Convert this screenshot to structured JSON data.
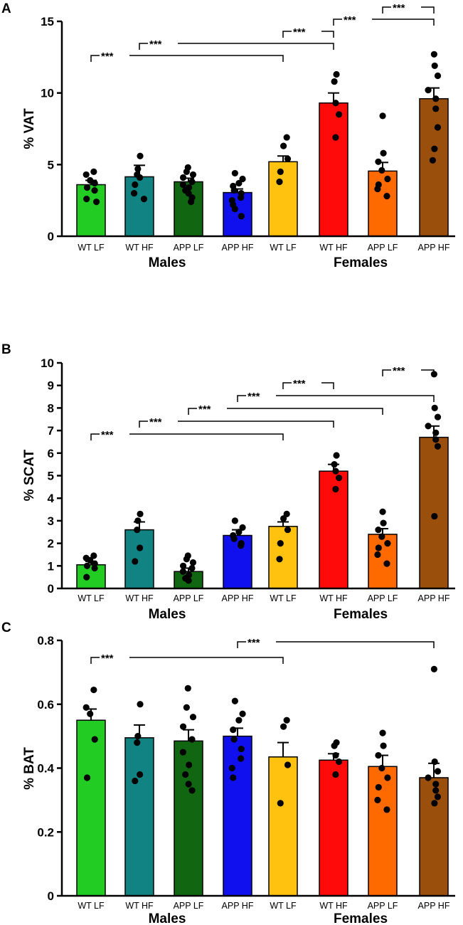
{
  "colors": {
    "WT LF M": "#22cc22",
    "WT HF M": "#128383",
    "APP LF M": "#116611",
    "APP HF M": "#1010ee",
    "WT LF F": "#ffc20e",
    "WT HF F": "#ff0a0a",
    "APP LF F": "#ff6a00",
    "APP HF F": "#9a4f0c"
  },
  "chart_data": [
    {
      "panel": "A",
      "type": "bar",
      "ylabel": "% VAT",
      "ylim": [
        0,
        15
      ],
      "yticks": [
        0,
        5,
        10,
        15
      ],
      "ytick_labels": [
        "0",
        "5",
        "10",
        "15"
      ],
      "categories": [
        "WT LF",
        "WT HF",
        "APP LF",
        "APP HF",
        "WT LF",
        "WT HF",
        "APP LF",
        "APP HF"
      ],
      "groups": [
        "Males",
        "Females"
      ],
      "values": [
        3.6,
        4.15,
        3.8,
        3.05,
        5.2,
        9.3,
        4.55,
        9.6
      ],
      "errors": [
        0.3,
        0.8,
        0.25,
        0.25,
        0.4,
        0.7,
        0.6,
        0.75
      ],
      "points": [
        [
          4.5,
          4.3,
          3.9,
          3.7,
          3.4,
          3.2,
          2.6,
          2.4
        ],
        [
          5.6,
          4.7,
          4.3,
          4.1,
          3.6,
          3.0,
          2.6
        ],
        [
          4.8,
          4.5,
          4.3,
          4.1,
          3.8,
          3.6,
          3.4,
          3.2,
          3.0,
          2.7,
          2.4
        ],
        [
          4.4,
          4.0,
          3.7,
          3.5,
          3.2,
          3.0,
          2.7,
          2.5,
          2.2,
          1.9,
          1.4
        ],
        [
          6.9,
          6.3,
          5.4,
          4.5,
          3.8
        ],
        [
          11.3,
          10.8,
          9.3,
          8.5,
          6.9
        ],
        [
          8.4,
          5.8,
          5.2,
          4.6,
          4.0,
          3.6,
          3.3,
          2.8
        ],
        [
          12.7,
          11.9,
          11.2,
          10.2,
          9.6,
          8.9,
          7.6,
          6.1,
          5.3
        ]
      ],
      "significance": [
        {
          "from": 0,
          "to": 4,
          "label": "***"
        },
        {
          "from": 1,
          "to": 5,
          "label": "***"
        },
        {
          "from": 4,
          "to": 5,
          "label": "***"
        },
        {
          "from": 5,
          "to": 7,
          "label": "***"
        },
        {
          "from": 6,
          "to": 7,
          "label": "***"
        }
      ]
    },
    {
      "panel": "B",
      "type": "bar",
      "ylabel": "% SCAT",
      "ylim": [
        0,
        10
      ],
      "yticks": [
        0,
        1,
        2,
        3,
        4,
        5,
        6,
        7,
        8,
        9,
        10
      ],
      "ytick_labels": [
        "0",
        "1",
        "2",
        "3",
        "4",
        "5",
        "6",
        "7",
        "8",
        "9",
        "10"
      ],
      "categories": [
        "WT LF",
        "WT HF",
        "APP LF",
        "APP HF",
        "WT LF",
        "WT HF",
        "APP LF",
        "APP HF"
      ],
      "groups": [
        "Males",
        "Females"
      ],
      "values": [
        1.05,
        2.6,
        0.75,
        2.35,
        2.75,
        5.2,
        2.4,
        6.7
      ],
      "errors": [
        0.15,
        0.35,
        0.15,
        0.25,
        0.2,
        0.3,
        0.25,
        0.5
      ],
      "points": [
        [
          1.45,
          1.35,
          1.25,
          1.1,
          1.0,
          0.9,
          0.5
        ],
        [
          3.3,
          3.0,
          2.6,
          1.8,
          1.2
        ],
        [
          1.45,
          1.3,
          1.15,
          1.0,
          0.9,
          0.75,
          0.6,
          0.45,
          0.35
        ],
        [
          3.0,
          2.7,
          2.5,
          2.35,
          2.2,
          2.0,
          1.9
        ],
        [
          3.3,
          3.1,
          2.6,
          2.0,
          1.3
        ],
        [
          5.9,
          5.5,
          5.2,
          4.9,
          4.4
        ],
        [
          3.4,
          2.9,
          2.6,
          2.3,
          2.0,
          1.8,
          1.5,
          1.1
        ],
        [
          9.5,
          8.0,
          7.6,
          7.2,
          6.9,
          6.6,
          6.3,
          3.2
        ]
      ],
      "significance": [
        {
          "from": 0,
          "to": 4,
          "label": "***"
        },
        {
          "from": 1,
          "to": 5,
          "label": "***"
        },
        {
          "from": 2,
          "to": 6,
          "label": "***"
        },
        {
          "from": 3,
          "to": 7,
          "label": "***"
        },
        {
          "from": 4,
          "to": 5,
          "label": "***"
        },
        {
          "from": 6,
          "to": 7,
          "label": "***"
        }
      ]
    },
    {
      "panel": "C",
      "type": "bar",
      "ylabel": "% BAT",
      "ylim": [
        0,
        0.8
      ],
      "yticks": [
        0,
        0.2,
        0.4,
        0.6,
        0.8
      ],
      "ytick_labels": [
        "0",
        "0.2",
        "0.4",
        "0.6",
        "0.8"
      ],
      "categories": [
        "WT LF",
        "WT HF",
        "APP LF",
        "APP HF",
        "WT LF",
        "WT HF",
        "APP LF",
        "APP HF"
      ],
      "groups": [
        "Males",
        "Females"
      ],
      "values": [
        0.55,
        0.495,
        0.485,
        0.5,
        0.435,
        0.425,
        0.405,
        0.37
      ],
      "errors": [
        0.035,
        0.04,
        0.035,
        0.025,
        0.045,
        0.02,
        0.035,
        0.045
      ],
      "points": [
        [
          0.645,
          0.59,
          0.57,
          0.49,
          0.37
        ],
        [
          0.6,
          0.5,
          0.48,
          0.38,
          0.36
        ],
        [
          0.65,
          0.59,
          0.56,
          0.53,
          0.49,
          0.45,
          0.41,
          0.38,
          0.35,
          0.33
        ],
        [
          0.61,
          0.57,
          0.55,
          0.52,
          0.49,
          0.46,
          0.43,
          0.4,
          0.37
        ],
        [
          0.55,
          0.53,
          0.41,
          0.29
        ],
        [
          0.48,
          0.47,
          0.44,
          0.42,
          0.38
        ],
        [
          0.51,
          0.47,
          0.44,
          0.4,
          0.37,
          0.34,
          0.3,
          0.27
        ],
        [
          0.71,
          0.42,
          0.39,
          0.37,
          0.35,
          0.33,
          0.31,
          0.29
        ]
      ],
      "significance": [
        {
          "from": 0,
          "to": 4,
          "label": "***"
        },
        {
          "from": 3,
          "to": 7,
          "label": "***"
        }
      ]
    }
  ]
}
